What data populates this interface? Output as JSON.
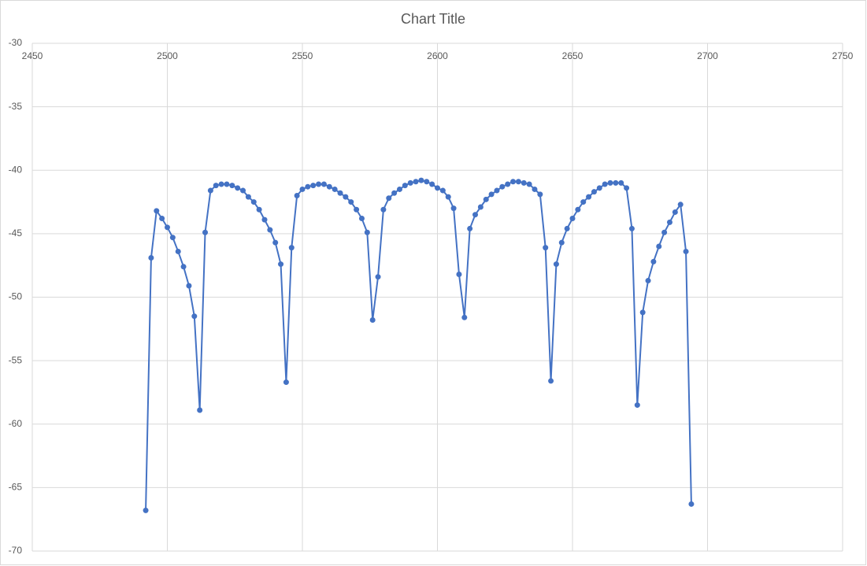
{
  "chart_data": {
    "type": "scatter",
    "title": "Chart Title",
    "x": [
      2492,
      2494,
      2496,
      2498,
      2500,
      2502,
      2504,
      2506,
      2508,
      2510,
      2512,
      2514,
      2516,
      2518,
      2520,
      2522,
      2524,
      2526,
      2528,
      2530,
      2532,
      2534,
      2536,
      2538,
      2540,
      2542,
      2544,
      2546,
      2548,
      2550,
      2552,
      2554,
      2556,
      2558,
      2560,
      2562,
      2564,
      2566,
      2568,
      2570,
      2572,
      2574,
      2576,
      2578,
      2580,
      2582,
      2584,
      2586,
      2588,
      2590,
      2592,
      2594,
      2596,
      2598,
      2600,
      2602,
      2604,
      2606,
      2608,
      2610,
      2612,
      2614,
      2616,
      2618,
      2620,
      2622,
      2624,
      2626,
      2628,
      2630,
      2632,
      2634,
      2636,
      2638,
      2640,
      2642,
      2644,
      2646,
      2648,
      2650,
      2652,
      2654,
      2656,
      2658,
      2660,
      2662,
      2664,
      2666,
      2668,
      2670,
      2672,
      2674,
      2676,
      2678,
      2680,
      2682,
      2684,
      2686,
      2688,
      2690,
      2692,
      2694
    ],
    "series": [
      {
        "color": "#4472c4",
        "values": [
          -66.8,
          -46.9,
          -43.2,
          -43.8,
          -44.5,
          -45.3,
          -46.4,
          -47.6,
          -49.1,
          -51.5,
          -58.9,
          -44.9,
          -41.6,
          -41.2,
          -41.1,
          -41.1,
          -41.2,
          -41.4,
          -41.6,
          -42.1,
          -42.5,
          -43.1,
          -43.9,
          -44.7,
          -45.7,
          -47.4,
          -56.7,
          -46.1,
          -42.0,
          -41.5,
          -41.3,
          -41.2,
          -41.1,
          -41.1,
          -41.3,
          -41.5,
          -41.8,
          -42.1,
          -42.5,
          -43.1,
          -43.8,
          -44.9,
          -51.8,
          -48.4,
          -43.1,
          -42.2,
          -41.8,
          -41.5,
          -41.2,
          -41.0,
          -40.9,
          -40.8,
          -40.9,
          -41.1,
          -41.4,
          -41.6,
          -42.1,
          -43.0,
          -48.2,
          -51.6,
          -44.6,
          -43.5,
          -42.9,
          -42.3,
          -41.9,
          -41.6,
          -41.3,
          -41.1,
          -40.9,
          -40.9,
          -41.0,
          -41.1,
          -41.5,
          -41.9,
          -46.1,
          -56.6,
          -47.4,
          -45.7,
          -44.6,
          -43.8,
          -43.1,
          -42.5,
          -42.1,
          -41.7,
          -41.4,
          -41.1,
          -41.0,
          -41.0,
          -41.0,
          -41.4,
          -44.6,
          -58.5,
          -51.2,
          -48.7,
          -47.2,
          -46.0,
          -44.9,
          -44.1,
          -43.3,
          -42.7,
          -46.4,
          -66.3
        ]
      }
    ],
    "xlim": [
      2450,
      2750
    ],
    "xticks": [
      2450,
      2500,
      2550,
      2600,
      2650,
      2700,
      2750
    ],
    "ylim": [
      -70,
      -30
    ],
    "yticks": [
      -70,
      -65,
      -60,
      -55,
      -50,
      -45,
      -40,
      -35,
      -30
    ],
    "grid": true
  }
}
